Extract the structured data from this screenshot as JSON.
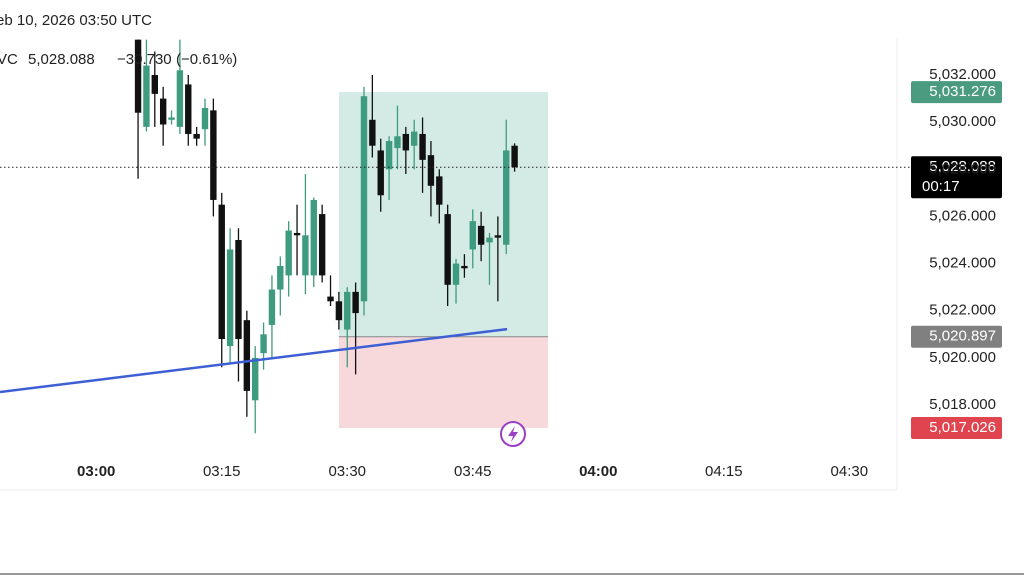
{
  "header": {
    "title": "eb 10, 2026 03:50 UTC",
    "symbol": "VC",
    "price": "5,028.088",
    "change": "−30.730",
    "change_pct": "(−0.61%)"
  },
  "chart_data": {
    "type": "candlestick",
    "x": [
      5,
      6,
      7,
      8,
      9,
      10,
      11,
      12,
      13,
      14,
      15,
      16,
      17,
      18,
      19,
      20,
      21,
      22,
      23,
      24,
      25,
      26,
      27,
      28,
      29,
      30,
      31,
      32,
      33,
      34,
      35,
      36,
      37,
      38,
      39,
      40,
      41,
      42,
      43,
      44,
      45,
      46,
      47,
      48,
      49,
      50
    ],
    "open": [
      5033.5,
      5029.8,
      5032,
      5031,
      5030.1,
      5029.8,
      5031.6,
      5029.5,
      5029.7,
      5030.5,
      5026.5,
      5020.5,
      5025,
      5021.6,
      5018.2,
      5020.2,
      5021.4,
      5022.9,
      5023.5,
      5025.3,
      5023.5,
      5023.5,
      5026.1,
      5022.6,
      5022.4,
      5021.2,
      5022.8,
      5022.4,
      5030.1,
      5028.8,
      5028,
      5028.9,
      5029.5,
      5029,
      5029.5,
      5028.6,
      5027.7,
      5026.1,
      5023.1,
      5023.9,
      5024.6,
      5025.6,
      5024.9,
      5025.2,
      5024.8,
      5029
    ],
    "high": [
      5033.5,
      5033.5,
      5033,
      5031.5,
      5030.5,
      5033.5,
      5032,
      5029.8,
      5031,
      5031,
      5027,
      5025.5,
      5025.5,
      5022,
      5020.5,
      5021.5,
      5023.5,
      5024.3,
      5025.8,
      5026.5,
      5027.8,
      5026.8,
      5026.5,
      5023.5,
      5022.8,
      5023,
      5023.2,
      5031.5,
      5032,
      5029.3,
      5029.4,
      5030.7,
      5029.8,
      5030.1,
      5030.2,
      5029.2,
      5028,
      5026.5,
      5024.2,
      5024.4,
      5026.3,
      5026.2,
      5025.3,
      5026,
      5030.1,
      5029.1
    ],
    "low": [
      5027.6,
      5029.6,
      5029.8,
      5029,
      5029.9,
      5029.5,
      5029,
      5029,
      5029,
      5026,
      5019.6,
      5019.8,
      5019,
      5017.5,
      5016.8,
      5019.5,
      5020,
      5021.8,
      5022.6,
      5023.5,
      5022.7,
      5023,
      5023.2,
      5022.2,
      5021.2,
      5019.6,
      5019.3,
      5021.8,
      5028.5,
      5026.2,
      5026.7,
      5028,
      5027.8,
      5028,
      5027,
      5026,
      5025.7,
      5022.2,
      5022.3,
      5023.4,
      5023.8,
      5024.1,
      5023.1,
      5022.4,
      5024.4,
      5027.9
    ],
    "close": [
      5030.4,
      5032.4,
      5031.2,
      5029.9,
      5030.2,
      5032.2,
      5029.5,
      5029.3,
      5030.6,
      5026.7,
      5020.8,
      5024.6,
      5020.8,
      5018.6,
      5020,
      5021,
      5022.9,
      5023.9,
      5025.4,
      5025.2,
      5025.2,
      5026.7,
      5023.5,
      5022.4,
      5021.6,
      5022.8,
      5021.9,
      5031.1,
      5029,
      5026.9,
      5029.2,
      5029.4,
      5028.8,
      5029.6,
      5028.4,
      5027.3,
      5026.5,
      5023.1,
      5024,
      5023.8,
      5025.8,
      5024.8,
      5025.1,
      5025.1,
      5028.8,
      5028.088
    ],
    "up_color": "#3e9b7f",
    "down_color": "#111111",
    "xlim": [
      -11.5,
      95.7
    ],
    "xticks": [
      {
        "value": 0,
        "label": "03:00"
      },
      {
        "value": 15,
        "label": "03:15"
      },
      {
        "value": 30,
        "label": "03:30"
      },
      {
        "value": 45,
        "label": "03:45"
      },
      {
        "value": 60,
        "label": "04:00"
      },
      {
        "value": 75,
        "label": "04:15"
      },
      {
        "value": 90,
        "label": "04:30"
      }
    ],
    "ylim": [
      5015.88,
      5033.57
    ],
    "yticks": [
      {
        "value": 5018,
        "label": "5,018.000"
      },
      {
        "value": 5020,
        "label": "5,020.000"
      },
      {
        "value": 5022,
        "label": "5,022.000"
      },
      {
        "value": 5024,
        "label": "5,024.000"
      },
      {
        "value": 5026,
        "label": "5,026.000"
      },
      {
        "value": 5028,
        "label": "5,028.000"
      },
      {
        "value": 5030,
        "label": "5,030.000"
      },
      {
        "value": 5032,
        "label": "5,032.000"
      }
    ],
    "grid": false,
    "price_tags": [
      {
        "value": 5031.276,
        "label": "5,031.276",
        "color": "#4a9b80"
      },
      {
        "value": 5028.088,
        "label": "5,028.088",
        "color": "#000000",
        "sub": "00:17"
      },
      {
        "value": 5020.897,
        "label": "5,020.897",
        "color": "#808080"
      },
      {
        "value": 5017.026,
        "label": "5,017.026",
        "color": "#e0454f"
      }
    ],
    "position": {
      "x": [
        29,
        54
      ],
      "entry": 5020.897,
      "target": 5031.276,
      "stop": 5017.026
    },
    "trendline": {
      "x": [
        -11.5,
        49.1
      ],
      "y": [
        5018.55,
        5021.22
      ],
      "color": "#3e5fd4"
    }
  }
}
